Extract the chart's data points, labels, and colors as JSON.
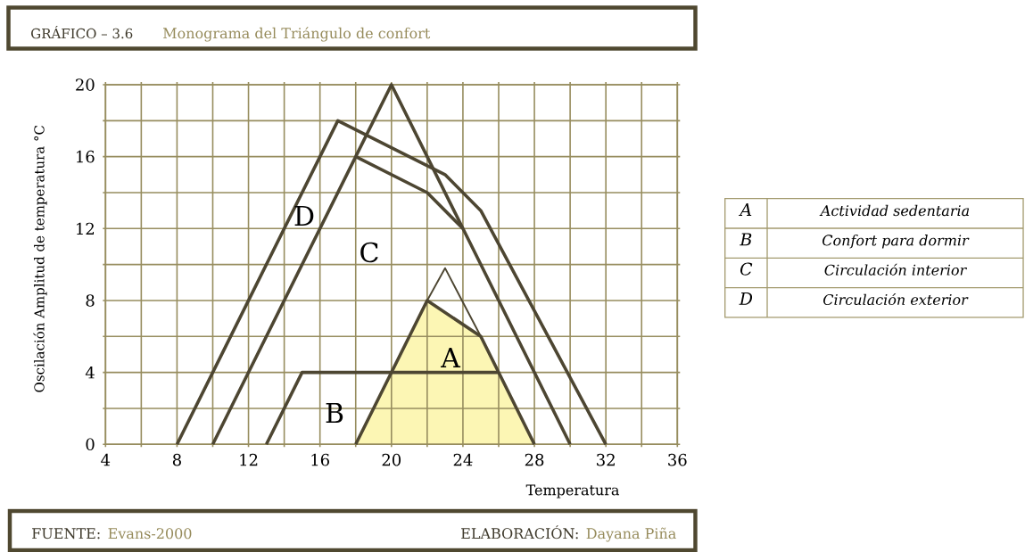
{
  "chart_data": {
    "type": "line",
    "title": "GRÁFICO – 3.6",
    "subtitle": "Monograma del Triángulo de confort",
    "xlabel": "Temperatura",
    "ylabel": "Oscilación Amplitud de temperatura °C",
    "xlim": [
      4,
      36
    ],
    "ylim": [
      0,
      20
    ],
    "xticks": [
      4,
      {
        "value": 6,
        "label": null
      },
      8,
      {
        "value": 10,
        "label": null
      },
      12,
      {
        "value": 14,
        "label": null
      },
      16,
      {
        "value": 18,
        "label": null
      },
      20,
      {
        "value": 22,
        "label": null
      },
      24,
      {
        "value": 26,
        "label": null
      },
      28,
      {
        "value": 30,
        "label": null
      },
      32,
      {
        "value": 34,
        "label": null
      },
      36
    ],
    "yticks": [
      0,
      {
        "value": 2,
        "label": null
      },
      4,
      {
        "value": 6,
        "label": null
      },
      8,
      {
        "value": 10,
        "label": null
      },
      12,
      {
        "value": 14,
        "label": null
      },
      16,
      {
        "value": 18,
        "label": null
      },
      20
    ],
    "grid": true,
    "series": [
      {
        "type": "area",
        "color": "#fcf6b4",
        "x": [
          18,
          22,
          25,
          28
        ],
        "values": [
          0,
          8,
          6,
          0
        ]
      },
      {
        "color": "#4d4632",
        "x": [
          22,
          23,
          25
        ],
        "values": [
          8,
          9.8,
          6
        ]
      },
      {
        "color": "#4d4632",
        "x": [
          13,
          15,
          26
        ],
        "values": [
          0,
          4,
          4
        ]
      },
      {
        "color": "#4d4632",
        "x": [
          10,
          18,
          20,
          24,
          30
        ],
        "values": [
          0,
          16,
          20,
          12,
          0
        ]
      },
      {
        "color": "#4d4632",
        "x": [
          18,
          22,
          24
        ],
        "values": [
          16,
          14,
          12
        ]
      },
      {
        "color": "#4d4632",
        "x": [
          8,
          17,
          23,
          25,
          32
        ],
        "values": [
          0,
          18,
          15,
          13,
          0
        ]
      }
    ],
    "annotations": [
      "A",
      "B",
      "C",
      "D",
      "A",
      "Actividad sedentaria",
      "B",
      "Confort para dormir",
      "C",
      "Circulación interior",
      "D",
      "Circulación exterior",
      "FUENTE:",
      "Evans-2000",
      "ELABORACIÓN:",
      "Dayana Piña"
    ]
  }
}
